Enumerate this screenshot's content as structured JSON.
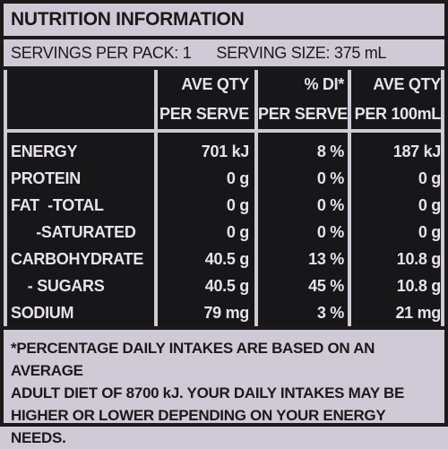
{
  "panel": {
    "title": "NUTRITION INFORMATION",
    "servings_per_pack": "SERVINGS PER PACK: 1",
    "serving_size": "SERVING SIZE: 375 mL"
  },
  "table": {
    "headers": [
      {
        "line1": "AVE QTY",
        "line2": "PER SERVE"
      },
      {
        "line1": "% DI*",
        "line2": "PER SERVE"
      },
      {
        "line1": "AVE QTY",
        "line2": "PER 100mL"
      }
    ],
    "rows": [
      {
        "name": "ENERGY",
        "per_serve": "701 kJ",
        "di": "8 %",
        "per_100ml": "187 kJ"
      },
      {
        "name": "PROTEIN",
        "per_serve": "0 g",
        "di": "0 %",
        "per_100ml": "0 g"
      },
      {
        "name": "FAT  -TOTAL",
        "per_serve": "0 g",
        "di": "0 %",
        "per_100ml": "0 g"
      },
      {
        "name": "      -SATURATED",
        "per_serve": "0 g",
        "di": "0 %",
        "per_100ml": "0 g"
      },
      {
        "name": "CARBOHYDRATE",
        "per_serve": "40.5 g",
        "di": "13 %",
        "per_100ml": "10.8 g"
      },
      {
        "name": "    - SUGARS",
        "per_serve": "40.5 g",
        "di": "45 %",
        "per_100ml": "10.8 g"
      },
      {
        "name": "SODIUM",
        "per_serve": "79 mg",
        "di": "3 %",
        "per_100ml": "21 mg"
      }
    ]
  },
  "footnote": {
    "line1": "*PERCENTAGE DAILY INTAKES ARE BASED ON AN AVERAGE",
    "line2": "ADULT DIET OF 8700 kJ. YOUR DAILY INTAKES MAY BE",
    "line3": "HIGHER OR LOWER DEPENDING ON YOUR ENERGY NEEDS."
  }
}
